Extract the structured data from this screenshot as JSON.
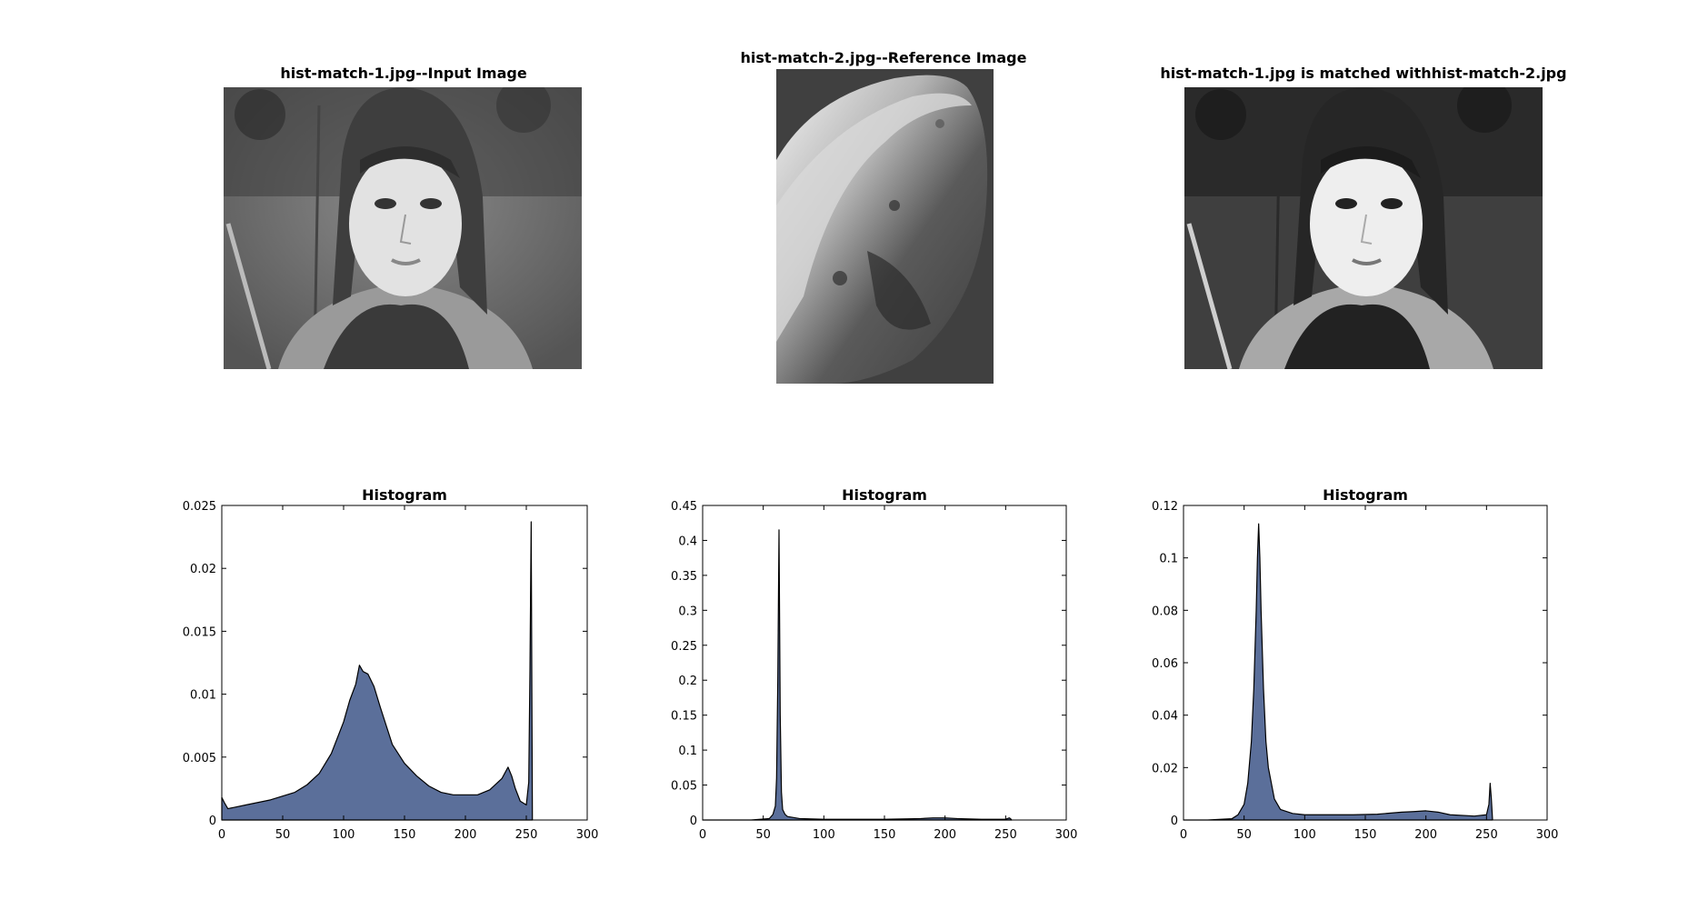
{
  "images": [
    {
      "title": "hist-match-1.jpg--Input Image",
      "kind": "portrait-original"
    },
    {
      "title": "hist-match-2.jpg--Reference Image",
      "kind": "asteroid-reference"
    },
    {
      "title": "hist-match-1.jpg is matched withhist-match-2.jpg",
      "kind": "portrait-matched"
    }
  ],
  "colors": {
    "fill": "#5b6f9a",
    "edge": "#000000"
  },
  "chart_data": [
    {
      "type": "area",
      "title": "Histogram",
      "xlim": [
        0,
        300
      ],
      "ylim": [
        0,
        0.025
      ],
      "xticks": [
        0,
        50,
        100,
        150,
        200,
        250,
        300
      ],
      "yticks": [
        0,
        0.005,
        0.01,
        0.015,
        0.02,
        0.025
      ],
      "x": [
        0,
        2,
        5,
        10,
        20,
        30,
        40,
        50,
        60,
        70,
        80,
        90,
        100,
        105,
        110,
        113,
        116,
        120,
        125,
        130,
        135,
        140,
        150,
        160,
        170,
        180,
        190,
        200,
        210,
        220,
        230,
        235,
        238,
        241,
        245,
        250,
        252,
        253,
        254,
        255
      ],
      "values": [
        0.0018,
        0.0014,
        0.0009,
        0.001,
        0.0012,
        0.0014,
        0.0016,
        0.0019,
        0.0022,
        0.0028,
        0.0037,
        0.0053,
        0.0078,
        0.0095,
        0.0108,
        0.0123,
        0.0118,
        0.0116,
        0.0106,
        0.009,
        0.0075,
        0.006,
        0.0045,
        0.0035,
        0.0027,
        0.0022,
        0.002,
        0.002,
        0.002,
        0.0024,
        0.0033,
        0.0042,
        0.0035,
        0.0025,
        0.0015,
        0.0012,
        0.003,
        0.012,
        0.0237,
        0.0
      ]
    },
    {
      "type": "area",
      "title": "Histogram",
      "xlim": [
        0,
        300
      ],
      "ylim": [
        0,
        0.45
      ],
      "xticks": [
        0,
        50,
        100,
        150,
        200,
        250,
        300
      ],
      "yticks": [
        0,
        0.05,
        0.1,
        0.15,
        0.2,
        0.25,
        0.3,
        0.35,
        0.4,
        0.45
      ],
      "x": [
        0,
        40,
        55,
        58,
        60,
        61,
        62,
        63,
        64,
        65,
        66,
        68,
        70,
        80,
        100,
        150,
        180,
        190,
        200,
        210,
        230,
        250,
        253,
        254,
        255
      ],
      "values": [
        0.0,
        0.0,
        0.002,
        0.008,
        0.02,
        0.06,
        0.2,
        0.415,
        0.15,
        0.04,
        0.015,
        0.008,
        0.005,
        0.002,
        0.001,
        0.001,
        0.002,
        0.003,
        0.003,
        0.002,
        0.001,
        0.001,
        0.003,
        0.002,
        0.0
      ]
    },
    {
      "type": "area",
      "title": "Histogram",
      "xlim": [
        0,
        300
      ],
      "ylim": [
        0,
        0.12
      ],
      "xticks": [
        0,
        50,
        100,
        150,
        200,
        250,
        300
      ],
      "yticks": [
        0,
        0.02,
        0.04,
        0.06,
        0.08,
        0.1,
        0.12
      ],
      "x": [
        0,
        20,
        40,
        45,
        50,
        53,
        56,
        58,
        60,
        61,
        62,
        63,
        64,
        66,
        68,
        70,
        75,
        80,
        90,
        100,
        120,
        140,
        160,
        180,
        190,
        200,
        210,
        220,
        240,
        250,
        252,
        253,
        254,
        255
      ],
      "values": [
        0.0,
        0.0,
        0.0005,
        0.002,
        0.006,
        0.014,
        0.03,
        0.05,
        0.08,
        0.1,
        0.113,
        0.1,
        0.08,
        0.05,
        0.03,
        0.02,
        0.008,
        0.004,
        0.0025,
        0.002,
        0.002,
        0.002,
        0.0022,
        0.003,
        0.0032,
        0.0035,
        0.003,
        0.002,
        0.0015,
        0.002,
        0.006,
        0.014,
        0.008,
        0.0
      ]
    }
  ]
}
